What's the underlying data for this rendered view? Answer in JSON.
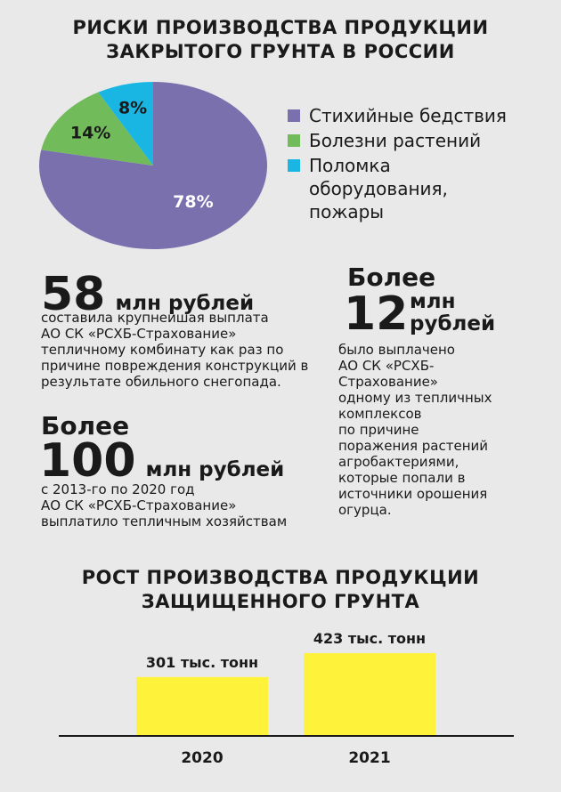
{
  "pie": {
    "title_line1": "РИСКИ ПРОИЗВОДСТВА ПРОДУКЦИИ",
    "title_line2": "ЗАКРЫТОГО ГРУНТА В РОССИИ"
  },
  "colors": {
    "purple": "#7a70ad",
    "green": "#72bb5a",
    "cyan": "#19b6e4",
    "bar_yellow": "#fff23a",
    "background": "#e9e9e9"
  },
  "facts": {
    "f1": {
      "number": "58",
      "unit": "млн рублей",
      "lines": [
        "составила крупнейшая выплата",
        "АО СК «РСХБ-Страхование»",
        "тепличному комбинату как раз по",
        "причине повреждения конструкций в",
        "результате обильного снегопада."
      ]
    },
    "f2": {
      "prefix": "Более",
      "number": "12",
      "unit_line1": "млн",
      "unit_line2": "рублей",
      "lines": [
        "было выплачено",
        "АО СК «РСХБ-",
        "Страхование»",
        "одному из тепличных",
        "комплексов",
        "по причине",
        "поражения растений",
        "агробактериями,",
        "которые попали в",
        "источники орошения",
        "огурца."
      ]
    },
    "f3": {
      "prefix": "Более",
      "number": "100",
      "unit": "млн рублей",
      "lines": [
        "с 2013-го по 2020 год",
        "АО СК «РСХБ-Страхование»",
        "выплатило тепличным хозяйствам"
      ]
    }
  },
  "bars": {
    "title_line1": "РОСТ ПРОИЗВОДСТВА ПРОДУКЦИИ",
    "title_line2": "ЗАЩИЩЕННОГО ГРУНТА"
  },
  "chart_data": [
    {
      "type": "pie",
      "title": "РИСКИ ПРОИЗВОДСТВА ПРОДУКЦИИ ЗАКРЫТОГО ГРУНТА В РОССИИ",
      "unit": "%",
      "slices": [
        {
          "label": "Стихийные бедствия",
          "value": 78,
          "value_label": "78%",
          "color": "#7a70ad"
        },
        {
          "label": "Болезни растений",
          "value": 14,
          "value_label": "14%",
          "color": "#72bb5a"
        },
        {
          "label": "Поломка оборудования, пожары",
          "value": 8,
          "value_label": "8%",
          "color": "#19b6e4"
        }
      ],
      "legend_lines": [
        [
          "Стихийные бедствия"
        ],
        [
          "Болезни растений"
        ],
        [
          "Поломка",
          "оборудования,",
          "пожары"
        ]
      ],
      "legend_position": "right"
    },
    {
      "type": "bar",
      "title": "РОСТ ПРОИЗВОДСТВА ПРОДУКЦИИ ЗАЩИЩЕННОГО ГРУНТА",
      "categories": [
        "2020",
        "2021"
      ],
      "values": [
        301,
        423
      ],
      "value_labels": [
        "301 тыс. тонн",
        "423 тыс. тонн"
      ],
      "unit": "тыс. тонн",
      "color": "#fff23a"
    }
  ]
}
